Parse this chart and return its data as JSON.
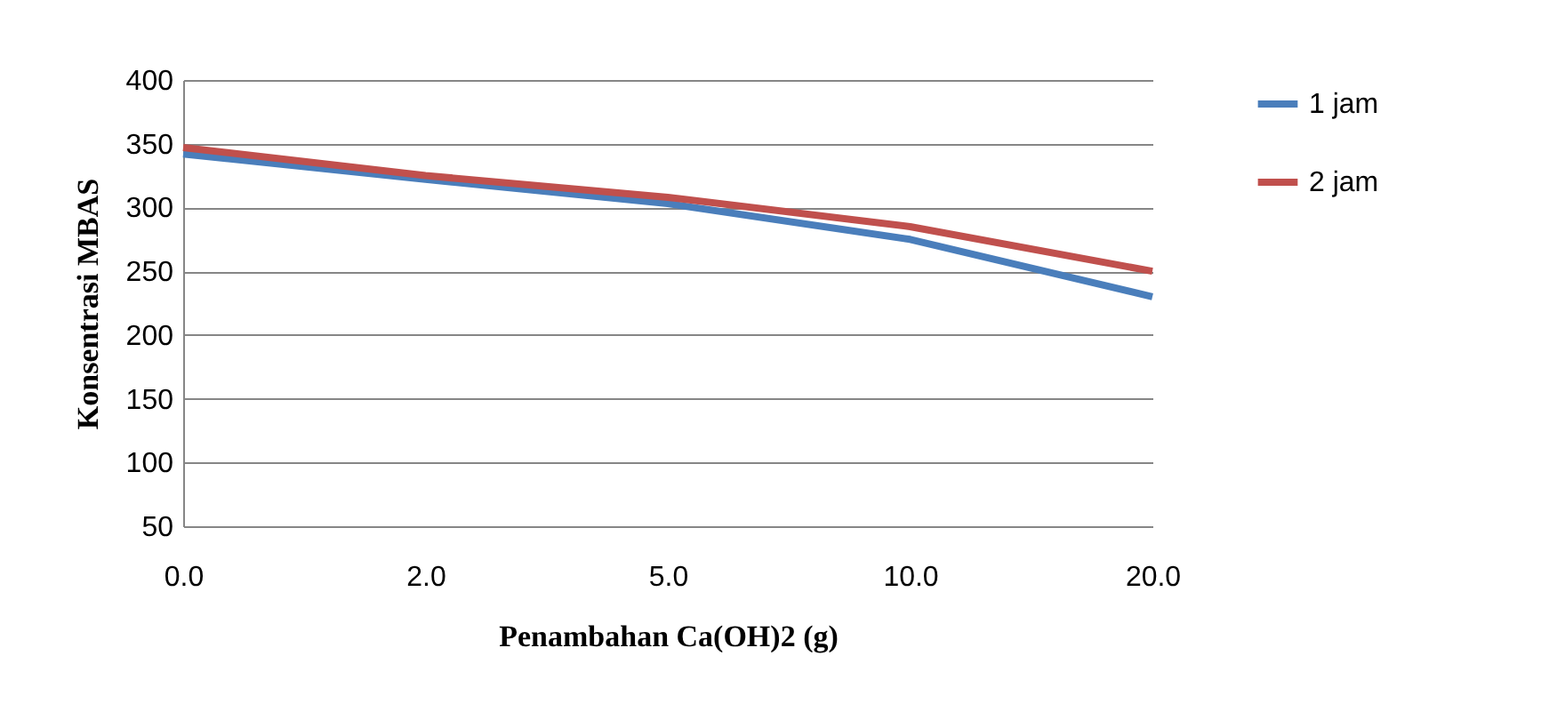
{
  "chart_data": {
    "type": "line",
    "xlabel": "Penambahan Ca(OH)2 (g)",
    "ylabel": "Konsentrasi MBAS",
    "categories": [
      "0.0",
      "2.0",
      "5.0",
      "10.0",
      "20.0"
    ],
    "series": [
      {
        "name": "1 jam",
        "color": "#4a7ebb",
        "values": [
          342,
          322,
          303,
          275,
          230
        ]
      },
      {
        "name": "2 jam",
        "color": "#c0504d",
        "values": [
          347,
          325,
          308,
          285,
          250
        ]
      }
    ],
    "ylim": [
      50,
      400
    ],
    "yticks": [
      50,
      100,
      150,
      200,
      250,
      300,
      350,
      400
    ],
    "grid": "y",
    "legend": "right",
    "marker": "none",
    "line_style": "solid"
  }
}
